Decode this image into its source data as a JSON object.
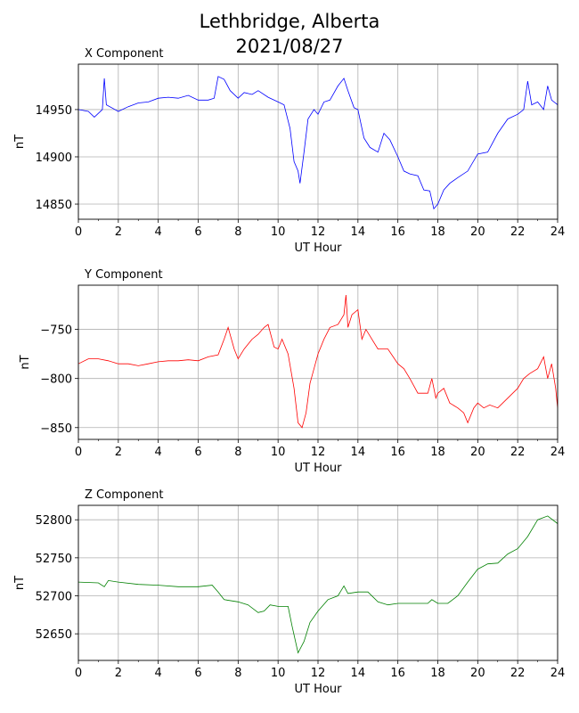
{
  "title": {
    "line1": "Lethbridge, Alberta",
    "line2": "2021/08/27"
  },
  "chart_data": [
    {
      "type": "line",
      "title": "X Component",
      "xlabel": "UT Hour",
      "ylabel": "nT",
      "color": "#0000ff",
      "xlim": [
        0,
        24
      ],
      "ylim": [
        14834,
        14998
      ],
      "xticks": [
        0,
        2,
        4,
        6,
        8,
        10,
        12,
        14,
        16,
        18,
        20,
        22,
        24
      ],
      "yticks": [
        14850,
        14900,
        14950
      ],
      "grid": true,
      "x": [
        0,
        0.5,
        0.8,
        1.0,
        1.2,
        1.3,
        1.4,
        2,
        2.5,
        3,
        3.5,
        4,
        4.5,
        5,
        5.5,
        6,
        6.5,
        6.8,
        7,
        7.3,
        7.6,
        8,
        8.3,
        8.7,
        9,
        9.5,
        10,
        10.3,
        10.6,
        10.8,
        11.0,
        11.1,
        11.3,
        11.5,
        11.8,
        12,
        12.3,
        12.6,
        13,
        13.3,
        13.5,
        13.8,
        14,
        14.3,
        14.6,
        15,
        15.3,
        15.6,
        16,
        16.3,
        16.6,
        17,
        17.3,
        17.6,
        17.8,
        18,
        18.3,
        18.6,
        19,
        19.5,
        20,
        20.5,
        21,
        21.5,
        22,
        22.3,
        22.5,
        22.7,
        23,
        23.3,
        23.5,
        23.7,
        24
      ],
      "y": [
        14950,
        14948,
        14942,
        14946,
        14950,
        14983,
        14955,
        14948,
        14953,
        14957,
        14958,
        14962,
        14963,
        14962,
        14965,
        14960,
        14960,
        14962,
        14985,
        14982,
        14970,
        14962,
        14968,
        14966,
        14970,
        14963,
        14958,
        14955,
        14930,
        14895,
        14885,
        14872,
        14905,
        14940,
        14950,
        14945,
        14958,
        14960,
        14975,
        14983,
        14970,
        14952,
        14950,
        14920,
        14910,
        14905,
        14925,
        14918,
        14900,
        14885,
        14882,
        14880,
        14865,
        14864,
        14845,
        14850,
        14865,
        14872,
        14878,
        14885,
        14903,
        14905,
        14925,
        14940,
        14945,
        14950,
        14980,
        14955,
        14958,
        14950,
        14975,
        14960,
        14955
      ]
    },
    {
      "type": "line",
      "title": "Y Component",
      "xlabel": "UT Hour",
      "ylabel": "nT",
      "color": "#ff0000",
      "xlim": [
        0,
        24
      ],
      "ylim": [
        -862,
        -705
      ],
      "xticks": [
        0,
        2,
        4,
        6,
        8,
        10,
        12,
        14,
        16,
        18,
        20,
        22,
        24
      ],
      "yticks": [
        -850,
        -800,
        -750
      ],
      "grid": true,
      "x": [
        0,
        0.5,
        1,
        1.5,
        2,
        2.5,
        3,
        3.5,
        4,
        4.5,
        5,
        5.5,
        6,
        6.5,
        7,
        7.3,
        7.5,
        7.8,
        8,
        8.3,
        8.7,
        9,
        9.3,
        9.5,
        9.8,
        10,
        10.2,
        10.5,
        10.8,
        11,
        11.2,
        11.4,
        11.6,
        11.8,
        12,
        12.3,
        12.6,
        13,
        13.3,
        13.4,
        13.5,
        13.7,
        14,
        14.2,
        14.4,
        14.7,
        15,
        15.5,
        16,
        16.3,
        16.6,
        17,
        17.5,
        17.7,
        17.9,
        18,
        18.3,
        18.6,
        19,
        19.3,
        19.5,
        19.8,
        20,
        20.3,
        20.6,
        21,
        21.5,
        22,
        22.3,
        22.6,
        23,
        23.3,
        23.5,
        23.7,
        23.9,
        24
      ],
      "y": [
        -785,
        -780,
        -780,
        -782,
        -785,
        -785,
        -787,
        -785,
        -783,
        -782,
        -782,
        -781,
        -782,
        -778,
        -776,
        -760,
        -748,
        -770,
        -780,
        -770,
        -760,
        -755,
        -748,
        -745,
        -768,
        -770,
        -760,
        -775,
        -810,
        -845,
        -850,
        -835,
        -805,
        -790,
        -775,
        -760,
        -748,
        -745,
        -735,
        -715,
        -748,
        -735,
        -730,
        -760,
        -750,
        -760,
        -770,
        -770,
        -785,
        -790,
        -800,
        -815,
        -815,
        -800,
        -820,
        -815,
        -810,
        -825,
        -830,
        -835,
        -845,
        -830,
        -825,
        -830,
        -827,
        -830,
        -820,
        -810,
        -800,
        -795,
        -790,
        -778,
        -800,
        -785,
        -810,
        -830
      ]
    },
    {
      "type": "line",
      "title": "Z Component",
      "xlabel": "UT Hour",
      "ylabel": "nT",
      "color": "#008000",
      "xlim": [
        0,
        24
      ],
      "ylim": [
        52615,
        52819
      ],
      "xticks": [
        0,
        2,
        4,
        6,
        8,
        10,
        12,
        14,
        16,
        18,
        20,
        22,
        24
      ],
      "yticks": [
        52650,
        52700,
        52750,
        52800
      ],
      "grid": true,
      "x": [
        0,
        1,
        1.3,
        1.5,
        2,
        3,
        4,
        5,
        6,
        6.7,
        7,
        7.3,
        8,
        8.5,
        9,
        9.3,
        9.6,
        10,
        10.5,
        10.7,
        11,
        11.3,
        11.6,
        12,
        12.5,
        13,
        13.3,
        13.5,
        14,
        14.5,
        15,
        15.5,
        16,
        17,
        17.5,
        17.7,
        18,
        18.5,
        19,
        19.5,
        20,
        20.5,
        21,
        21.5,
        22,
        22.5,
        23,
        23.5,
        24
      ],
      "y": [
        52718,
        52717,
        52712,
        52720,
        52718,
        52715,
        52714,
        52712,
        52712,
        52714,
        52705,
        52695,
        52692,
        52688,
        52678,
        52680,
        52688,
        52686,
        52686,
        52660,
        52625,
        52640,
        52665,
        52680,
        52695,
        52700,
        52713,
        52703,
        52705,
        52705,
        52692,
        52688,
        52690,
        52690,
        52690,
        52695,
        52690,
        52690,
        52700,
        52718,
        52735,
        52742,
        52743,
        52755,
        52762,
        52778,
        52800,
        52805,
        52795
      ]
    }
  ]
}
